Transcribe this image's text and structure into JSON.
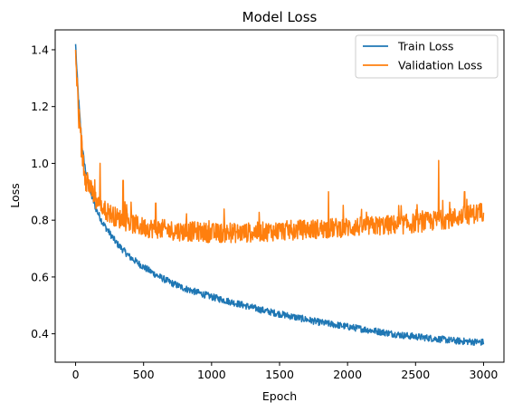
{
  "chart_data": {
    "type": "line",
    "title": "Model Loss",
    "xlabel": "Epoch",
    "ylabel": "Loss",
    "xlim": [
      -150,
      3150
    ],
    "ylim": [
      0.3,
      1.47
    ],
    "xticks": [
      0,
      500,
      1000,
      1500,
      2000,
      2500,
      3000
    ],
    "yticks": [
      0.4,
      0.6,
      0.8,
      1.0,
      1.2,
      1.4
    ],
    "xtick_labels": [
      "0",
      "500",
      "1000",
      "1500",
      "2000",
      "2500",
      "3000"
    ],
    "ytick_labels": [
      "0.4",
      "0.6",
      "0.8",
      "1.0",
      "1.2",
      "1.4"
    ],
    "grid": false,
    "legend_position": "top-right",
    "series": [
      {
        "name": "Train Loss",
        "color": "#1f77b4",
        "x": [
          0,
          10,
          20,
          30,
          50,
          75,
          100,
          150,
          200,
          300,
          400,
          500,
          600,
          700,
          800,
          900,
          1000,
          1200,
          1400,
          1600,
          1800,
          2000,
          2200,
          2400,
          2600,
          2800,
          3000
        ],
        "y": [
          1.42,
          1.32,
          1.24,
          1.17,
          1.05,
          0.97,
          0.91,
          0.84,
          0.79,
          0.72,
          0.67,
          0.635,
          0.605,
          0.58,
          0.56,
          0.545,
          0.53,
          0.505,
          0.48,
          0.46,
          0.44,
          0.425,
          0.41,
          0.395,
          0.385,
          0.375,
          0.37
        ]
      },
      {
        "name": "Validation Loss",
        "color": "#ff7f0e",
        "x": [
          0,
          10,
          20,
          30,
          50,
          75,
          100,
          150,
          200,
          300,
          400,
          500,
          600,
          700,
          800,
          900,
          1000,
          1200,
          1400,
          1600,
          1800,
          2000,
          2200,
          2400,
          2600,
          2800,
          3000
        ],
        "y": [
          1.4,
          1.28,
          1.2,
          1.12,
          1.03,
          0.96,
          0.92,
          0.87,
          0.84,
          0.81,
          0.79,
          0.775,
          0.77,
          0.765,
          0.76,
          0.76,
          0.755,
          0.755,
          0.76,
          0.765,
          0.77,
          0.775,
          0.78,
          0.785,
          0.795,
          0.81,
          0.83
        ]
      }
    ],
    "noise": {
      "train_amplitude": 0.012,
      "val_amplitude": 0.035,
      "val_spikes_at": [
        180,
        350,
        590,
        1860,
        2670,
        2860
      ],
      "val_spike_values": [
        1.0,
        0.94,
        0.86,
        0.9,
        1.01,
        0.9
      ]
    }
  }
}
